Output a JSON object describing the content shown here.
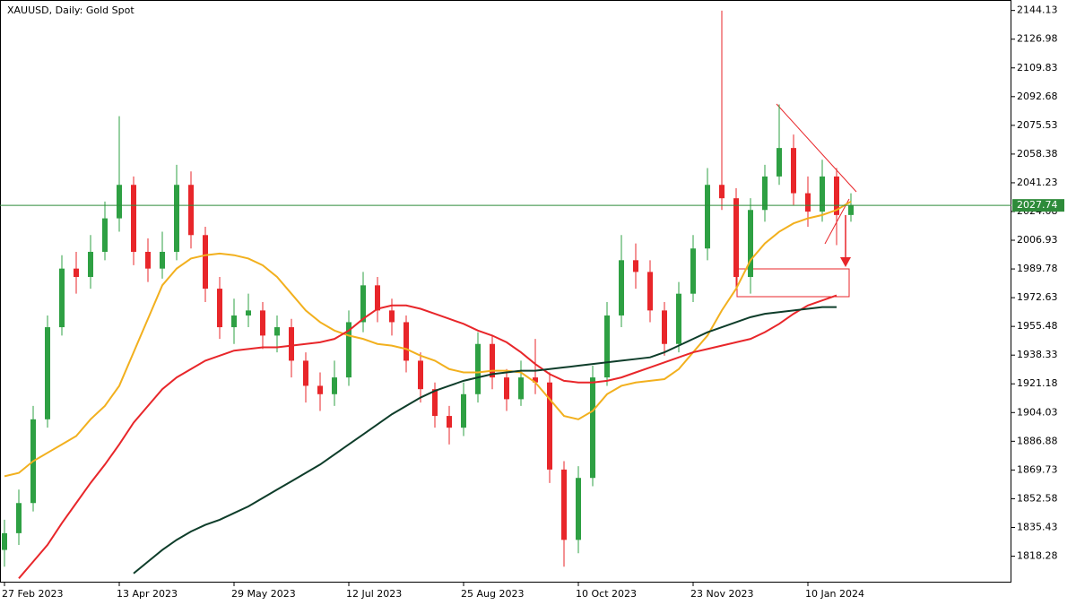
{
  "chart_data": {
    "type": "candlestick",
    "title": "XAUUSD, Daily:  Gold Spot",
    "categories": [
      "27 Feb 2023",
      null,
      null,
      null,
      null,
      null,
      null,
      null,
      "13 Apr 2023",
      null,
      null,
      null,
      null,
      null,
      null,
      null,
      "29 May 2023",
      null,
      null,
      null,
      null,
      null,
      null,
      null,
      "12 Jul 2023",
      null,
      null,
      null,
      null,
      null,
      null,
      null,
      "25 Aug 2023",
      null,
      null,
      null,
      null,
      null,
      null,
      null,
      "10 Oct 2023",
      null,
      null,
      null,
      null,
      null,
      null,
      null,
      "23 Nov 2023",
      null,
      null,
      null,
      null,
      null,
      null,
      null,
      "10 Jan 2024",
      null,
      null,
      null
    ],
    "open": [
      1822,
      1832,
      1850,
      1900,
      1955,
      1990,
      1985,
      2000,
      2020,
      2040,
      2000,
      1990,
      2000,
      2040,
      2010,
      1978,
      1955,
      1962,
      1965,
      1950,
      1955,
      1935,
      1920,
      1915,
      1925,
      1958,
      1980,
      1965,
      1958,
      1935,
      1918,
      1902,
      1895,
      1915,
      1945,
      1925,
      1912,
      1925,
      1922,
      1870,
      1828,
      1865,
      1925,
      1962,
      1995,
      1988,
      1965,
      1945,
      1975,
      2002,
      2040,
      2032,
      1985,
      2025,
      2045,
      2062,
      2035,
      2024,
      2045,
      2022
    ],
    "high": [
      1840,
      1858,
      1908,
      1962,
      1998,
      2000,
      2010,
      2030,
      2081,
      2045,
      2008,
      2012,
      2052,
      2048,
      2015,
      1985,
      1972,
      1975,
      1970,
      1962,
      1960,
      1940,
      1928,
      1935,
      1965,
      1988,
      1985,
      1972,
      1962,
      1940,
      1922,
      1908,
      1922,
      1952,
      1950,
      1930,
      1935,
      1948,
      1928,
      1875,
      1872,
      1932,
      1970,
      2010,
      2005,
      1995,
      1970,
      1982,
      2010,
      2050,
      2144,
      2038,
      2032,
      2052,
      2088,
      2070,
      2045,
      2055,
      2050,
      2035
    ],
    "low": [
      1812,
      1825,
      1845,
      1895,
      1950,
      1975,
      1978,
      1995,
      2012,
      1992,
      1982,
      1984,
      1995,
      2002,
      1970,
      1948,
      1945,
      1955,
      1942,
      1940,
      1925,
      1910,
      1905,
      1908,
      1920,
      1952,
      1958,
      1950,
      1928,
      1910,
      1895,
      1885,
      1890,
      1910,
      1918,
      1905,
      1908,
      1915,
      1862,
      1812,
      1820,
      1860,
      1920,
      1955,
      1978,
      1958,
      1938,
      1940,
      1970,
      1995,
      2025,
      1978,
      1975,
      2018,
      2040,
      2028,
      2015,
      2018,
      2004,
      2018
    ],
    "close": [
      1832,
      1850,
      1900,
      1955,
      1990,
      1985,
      2000,
      2020,
      2040,
      2000,
      1990,
      2000,
      2040,
      2010,
      1978,
      1955,
      1962,
      1965,
      1950,
      1955,
      1935,
      1920,
      1915,
      1925,
      1958,
      1980,
      1965,
      1958,
      1935,
      1918,
      1902,
      1895,
      1915,
      1945,
      1925,
      1912,
      1925,
      1922,
      1870,
      1828,
      1865,
      1925,
      1962,
      1995,
      1988,
      1965,
      1945,
      1975,
      2002,
      2040,
      2032,
      1985,
      2025,
      2045,
      2062,
      2035,
      2024,
      2045,
      2022,
      2028
    ],
    "up_color": "#2ea043",
    "down_color": "#e8262a",
    "series": [
      {
        "color": "#f2b01e",
        "values": [
          1866,
          1868,
          1875,
          1880,
          1885,
          1890,
          1900,
          1908,
          1920,
          1940,
          1960,
          1980,
          1990,
          1996,
          1998,
          1999,
          1998,
          1996,
          1992,
          1985,
          1975,
          1965,
          1958,
          1953,
          1950,
          1948,
          1945,
          1944,
          1942,
          1938,
          1935,
          1930,
          1928,
          1928,
          1929,
          1929,
          1928,
          1922,
          1912,
          1902,
          1900,
          1905,
          1915,
          1920,
          1922,
          1923,
          1924,
          1930,
          1940,
          1950,
          1965,
          1978,
          1995,
          2005,
          2012,
          2017,
          2020,
          2022,
          2025,
          2030
        ]
      },
      {
        "color": "#e8262a",
        "values": [
          null,
          1805,
          1815,
          1825,
          1838,
          1850,
          1862,
          1873,
          1885,
          1898,
          1908,
          1918,
          1925,
          1930,
          1935,
          1938,
          1941,
          1942,
          1943,
          1943,
          1944,
          1945,
          1946,
          1948,
          1953,
          1960,
          1966,
          1968,
          1968,
          1966,
          1963,
          1960,
          1957,
          1953,
          1950,
          1946,
          1940,
          1933,
          1927,
          1923,
          1922,
          1922,
          1923,
          1925,
          1928,
          1931,
          1934,
          1937,
          1940,
          1942,
          1944,
          1946,
          1948,
          1952,
          1957,
          1963,
          1968,
          1971,
          1974,
          null
        ]
      },
      {
        "color": "#0e3d2a",
        "values": [
          null,
          null,
          null,
          null,
          null,
          null,
          null,
          null,
          null,
          1808,
          1815,
          1822,
          1828,
          1833,
          1837,
          1840,
          1844,
          1848,
          1853,
          1858,
          1863,
          1868,
          1873,
          1879,
          1885,
          1891,
          1897,
          1903,
          1908,
          1913,
          1917,
          1920,
          1923,
          1925,
          1927,
          1928,
          1929,
          1929,
          1930,
          1931,
          1932,
          1933,
          1934,
          1935,
          1936,
          1937,
          1940,
          1944,
          1948,
          1952,
          1955,
          1958,
          1961,
          1963,
          1964,
          1965,
          1966,
          1967,
          1967,
          null
        ]
      }
    ],
    "current_price": 2027.74,
    "current_price_color": "#2e8b3a",
    "ylim": [
      1802.5,
      2147.7
    ],
    "yticks": [
      2144.13,
      2126.98,
      2109.83,
      2092.68,
      2075.53,
      2058.38,
      2041.23,
      2024.08,
      2006.93,
      1989.78,
      1972.63,
      1955.48,
      1938.33,
      1921.18,
      1904.03,
      1886.88,
      1869.73,
      1852.58,
      1835.43,
      1818.28
    ]
  }
}
